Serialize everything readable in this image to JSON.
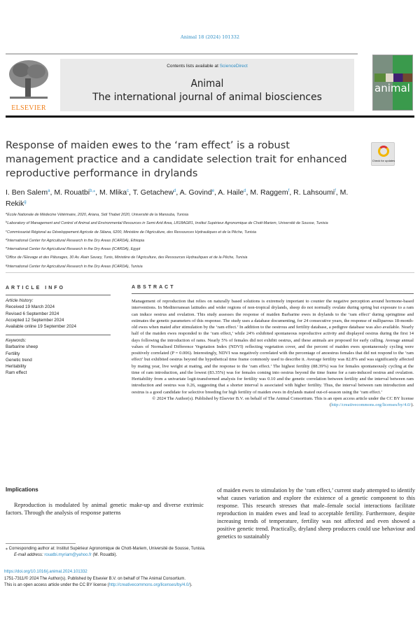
{
  "journal_ref": "Animal 18 (2024) 101332",
  "header": {
    "contents_prefix": "Contents lists available at ",
    "sciencedirect": "ScienceDirect",
    "journal_title": "Animal",
    "journal_subtitle": "The international journal of animal biosciences",
    "publisher_logo": "ELSEVIER",
    "cover_word": "animal"
  },
  "crossmark_label": "Check for updates",
  "title": "Response of maiden ewes to the ‘ram effect’ is a robust management practice and a candidate selection trait for enhanced reproductive performance in drylands",
  "authors": [
    {
      "name": "I. Ben Salem",
      "aff": "a"
    },
    {
      "name": "M. Rouatbi",
      "aff": "b,⁎"
    },
    {
      "name": "M. Mlika",
      "aff": "c"
    },
    {
      "name": "T. Getachew",
      "aff": "d"
    },
    {
      "name": "A. Govind",
      "aff": "e"
    },
    {
      "name": "A. Haile",
      "aff": "d"
    },
    {
      "name": "M. Raggem",
      "aff": "f"
    },
    {
      "name": "R. Lahsoumi",
      "aff": "f"
    },
    {
      "name": "M. Rekik",
      "aff": "g"
    }
  ],
  "affiliations": [
    {
      "key": "a",
      "text": "Ecole Nationale de Médecine Vétérinaire, 2020, Ariana, Sidi Thabet 2020, Université de la Manouba, Tunisia"
    },
    {
      "key": "b",
      "text": "Laboratory of Management and Control of Animal and Environmental Resources in Semi-Arid Area, LR18AGR1, Institut Supérieur Agronomique de Chott-Mariem, Université de Sousse, Tunisia"
    },
    {
      "key": "c",
      "text": "Commissariat Régional au Développement Agricole de Siliana, 6200, Ministère de l’Agriculture, des Ressources Hydrauliques et de la Pêche, Tunisia"
    },
    {
      "key": "d",
      "text": "International Center for Agricultural Research in the Dry Areas (ICARDA), Ethiopia"
    },
    {
      "key": "e",
      "text": "International Center for Agricultural Research in the Dry Areas (ICARDA), Egypt"
    },
    {
      "key": "f",
      "text": "Office de l’Elevage et des Pâturages, 30 Av. Alain Savary, Tunis, Ministère de l’Agriculture, des Ressources Hydrauliques et de la Pêche, Tunisia"
    },
    {
      "key": "g",
      "text": "International Center for Agricultural Research in the Dry Areas (ICARDA), Tunisia"
    }
  ],
  "article_info": {
    "heading": "ARTICLE INFO",
    "history_label": "Article history:",
    "history": [
      "Received 19 March 2024",
      "Revised 6 September 2024",
      "Accepted 12 September 2024",
      "Available online 19 September 2024"
    ],
    "keywords_label": "Keywords:",
    "keywords": [
      "Barbarine sheep",
      "Fertility",
      "Genetic trend",
      "Heritability",
      "Ram effect"
    ]
  },
  "abstract": {
    "heading": "ABSTRACT",
    "text": "Management of reproduction that relies on naturally based solutions is extremely important to counter the negative perception around hormone-based interventions. In Mediterranean latitudes and wider regions of non-tropical drylands, sheep do not normally ovulate during spring but exposure to a ram can induce oestrus and ovulation. This study assesses the response of maiden Barbarine ewes in drylands to the ‘ram effect’ during springtime and estimates the genetic parameters of this response. The study uses a database documenting, for 24 consecutive years, the response of nulliparous 18-month-old ewes when mated after stimulation by the ‘ram effect.’ In addition to the oestrous and fertility database, a pedigree database was also available. Nearly half of the maiden ewes responded to the ‘ram effect,’ while 24% exhibited spontaneous reproductive activity and displayed oestrus during the first 14 days following the introduction of rams. Nearly 5% of females did not exhibit oestrus, and these animals are proposed for early culling. Average annual values of Normalised Difference Vegetation Index (NDVI) reflecting vegetation cover, and the percent of maiden ewes spontaneously cycling were positively correlated (P = 0.006). Interestingly, NDVI was negatively correlated with the percentage of anoestrus females that did not respond to the ‘ram effect’ but exhibited oestrus beyond the hypothetical time frame commonly used to describe it. Average fertility was 82.8% and was significantly affected by mating year, live weight at mating, and the response to the ‘ram effect.’ The highest fertility (88.39%) was for females spontaneously cycling at the time of ram introduction, and the lowest (83.35%) was for females coming into oestrus beyond the time frame for a ram-induced oestrus and ovulation. Heritability from a univariate logit-transformed analysis for fertility was 0.10 and the genetic correlation between fertility and the interval between ram introduction and oestrus was 0.26, suggesting that a shorter interval is associated with higher fertility. Thus, the interval between ram introduction and oestrus is a good candidate for selective breeding for high fertility of maiden ewes in drylands mated out-of-season using the ‘ram effect.’",
    "license_prefix": "© 2024 The Author(s). Published by Elsevier B.V. on behalf of The Animal Consortium. This is an open access article under the CC BY license (",
    "license_url": "http://creativecommons.org/licenses/by/4.0/",
    "license_suffix": ")."
  },
  "implications": {
    "heading": "Implications",
    "left_text": "Reproduction is modulated by animal genetic make-up and diverse extrinsic factors. Through the analysis of response patterns",
    "right_text": "of maiden ewes to stimulation by the ‘ram effect,’ current study attempted to identify what causes variation and explore the existence of a genetic component to this response. This research stresses that male–female social interactions facilitate reproduction in maiden ewes and lead to acceptable fertility. Furthermore, despite increasing trends of temperature, fertility was not affected and even showed a positive genetic trend. Practically, dryland sheep producers could use behaviour and genetics to sustainably"
  },
  "footnotes": {
    "corresponding": "⁎ Corresponding author at: Institut Supérieur Agronomique de Chott-Mariem, Université de Sousse, Tunisia.",
    "email_label": "E-mail address: ",
    "email": "rouatbi.myriam@yahoo.fr",
    "email_suffix": " (M. Rouatbi)."
  },
  "footer": {
    "doi": "https://doi.org/10.1016/j.animal.2024.101332",
    "copyright": "1751-7311/© 2024 The Author(s). Published by Elsevier B.V. on behalf of The Animal Consortium.",
    "oa_prefix": "This is an open access article under the CC BY license (",
    "oa_url": "http://creativecommons.org/licenses/by/4.0/",
    "oa_suffix": ")."
  },
  "colors": {
    "link": "#2a8cc4",
    "elsevier_orange": "#f07f1a",
    "cover_green": "#3a9a4c"
  }
}
